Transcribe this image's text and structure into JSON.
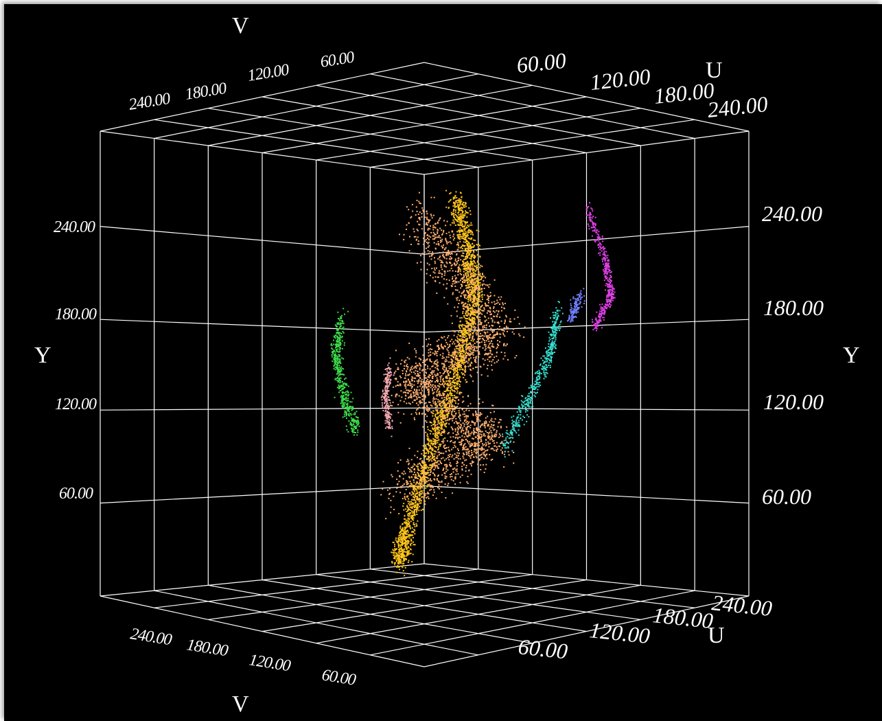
{
  "chart_data": {
    "type": "scatter",
    "projection": "3d",
    "title": "",
    "axes": {
      "u": {
        "label": "U",
        "ticks": [
          "60.00",
          "120.00",
          "180.00",
          "240.00"
        ],
        "range": [
          0,
          255
        ]
      },
      "v": {
        "label": "V",
        "ticks": [
          "240.00",
          "180.00",
          "120.00",
          "60.00"
        ],
        "range": [
          0,
          255
        ]
      },
      "y": {
        "label": "Y",
        "ticks": [
          "240.00",
          "180.00",
          "120.00",
          "60.00"
        ],
        "range": [
          0,
          255
        ]
      }
    },
    "grid": true,
    "background": "#000000",
    "series": [
      {
        "color": "#ffc61a",
        "shape": "main elongated cluster",
        "points": [
          {
            "u": 150,
            "v": 130,
            "y": 252
          },
          {
            "u": 160,
            "v": 125,
            "y": 220
          },
          {
            "u": 165,
            "v": 122,
            "y": 185
          },
          {
            "u": 150,
            "v": 120,
            "y": 150
          },
          {
            "u": 130,
            "v": 122,
            "y": 110
          },
          {
            "u": 110,
            "v": 125,
            "y": 70
          },
          {
            "u": 95,
            "v": 130,
            "y": 30
          },
          {
            "u": 90,
            "v": 132,
            "y": 10
          }
        ]
      },
      {
        "color": "#ffb070",
        "shape": "diffuse halo",
        "points": [
          {
            "u": 120,
            "v": 140,
            "y": 240
          },
          {
            "u": 175,
            "v": 105,
            "y": 160
          },
          {
            "u": 110,
            "v": 145,
            "y": 130
          },
          {
            "u": 170,
            "v": 110,
            "y": 90
          },
          {
            "u": 100,
            "v": 140,
            "y": 60
          }
        ]
      },
      {
        "color": "#3ddc4a",
        "shape": "left cluster",
        "points": [
          {
            "u": 60,
            "v": 170,
            "y": 175
          },
          {
            "u": 55,
            "v": 172,
            "y": 150
          },
          {
            "u": 62,
            "v": 168,
            "y": 120
          },
          {
            "u": 72,
            "v": 165,
            "y": 100
          }
        ]
      },
      {
        "color": "#f5a8b0",
        "shape": "small pink cluster",
        "points": [
          {
            "u": 95,
            "v": 150,
            "y": 140
          },
          {
            "u": 92,
            "v": 152,
            "y": 120
          },
          {
            "u": 95,
            "v": 150,
            "y": 100
          }
        ]
      },
      {
        "color": "#36e0d0",
        "shape": "cyan arc",
        "points": [
          {
            "u": 215,
            "v": 75,
            "y": 175
          },
          {
            "u": 210,
            "v": 80,
            "y": 145
          },
          {
            "u": 195,
            "v": 90,
            "y": 115
          },
          {
            "u": 178,
            "v": 100,
            "y": 85
          }
        ]
      },
      {
        "color": "#e040e8",
        "shape": "magenta arc",
        "points": [
          {
            "u": 230,
            "v": 55,
            "y": 245
          },
          {
            "u": 245,
            "v": 50,
            "y": 210
          },
          {
            "u": 250,
            "v": 48,
            "y": 185
          },
          {
            "u": 238,
            "v": 55,
            "y": 165
          }
        ]
      },
      {
        "color": "#7080ff",
        "shape": "blue-violet transition",
        "points": [
          {
            "u": 228,
            "v": 62,
            "y": 185
          },
          {
            "u": 222,
            "v": 68,
            "y": 170
          }
        ]
      }
    ]
  }
}
